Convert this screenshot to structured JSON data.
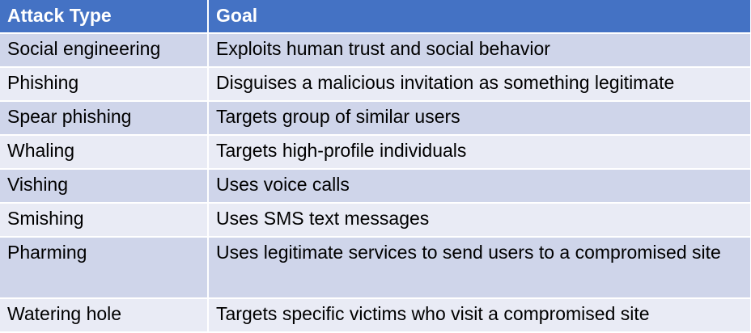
{
  "table": {
    "headers": [
      "Attack Type",
      "Goal"
    ],
    "rows": [
      {
        "type": "Social engineering",
        "goal": "Exploits human trust and social behavior"
      },
      {
        "type": "Phishing",
        "goal": "Disguises a malicious invitation as something legitimate"
      },
      {
        "type": "Spear phishing",
        "goal": "Targets group of similar users"
      },
      {
        "type": "Whaling",
        "goal": "Targets high-profile individuals"
      },
      {
        "type": "Vishing",
        "goal": "Uses voice calls"
      },
      {
        "type": "Smishing",
        "goal": "Uses SMS text messages"
      },
      {
        "type": "Pharming",
        "goal": "Uses legitimate services to send users to a compromised site"
      },
      {
        "type": "Watering hole",
        "goal": "Targets specific victims who visit a compromised site"
      }
    ]
  },
  "colors": {
    "header_bg": "#4472c4",
    "row_odd_bg": "#cfd5ea",
    "row_even_bg": "#e9ebf5"
  }
}
